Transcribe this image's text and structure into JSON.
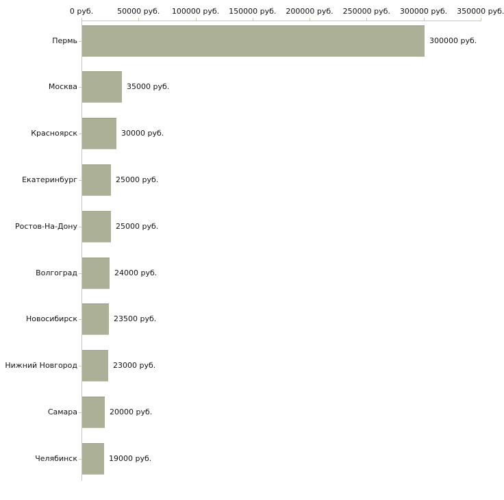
{
  "chart_data": {
    "type": "bar",
    "orientation": "horizontal",
    "title": "",
    "xlabel": "",
    "ylabel": "",
    "unit": "руб.",
    "xlim": [
      0,
      350000
    ],
    "grid": false,
    "legend": false,
    "categories": [
      "Пермь",
      "Москва",
      "Красноярск",
      "Екатеринбург",
      "Ростов-На-Дону",
      "Волгоград",
      "Новосибирск",
      "Нижний Новгород",
      "Самара",
      "Челябинск"
    ],
    "values": [
      300000,
      35000,
      30000,
      25000,
      25000,
      24000,
      23500,
      23000,
      20000,
      19000
    ],
    "value_labels": [
      "300000 руб.",
      "35000 руб.",
      "30000 руб.",
      "25000 руб.",
      "25000 руб.",
      "24000 руб.",
      "23500 руб.",
      "23000 руб.",
      "20000 руб.",
      "19000 руб."
    ],
    "x_tick_values": [
      0,
      50000,
      100000,
      150000,
      200000,
      250000,
      300000,
      350000
    ],
    "x_tick_labels": [
      "0 руб.",
      "50000 руб.",
      "100000 руб.",
      "150000 руб.",
      "200000 руб.",
      "250000 руб.",
      "300000 руб.",
      "350000 руб."
    ],
    "colors": {
      "bar_fill": "#abb097",
      "bar_edge_top": "#99a083",
      "bar_edge_bottom": "#bdc0ab",
      "axis_line": "#c6c6c6",
      "tick_mark": "#c9c9a5",
      "text": "#111111",
      "background": "#ffffff"
    }
  }
}
